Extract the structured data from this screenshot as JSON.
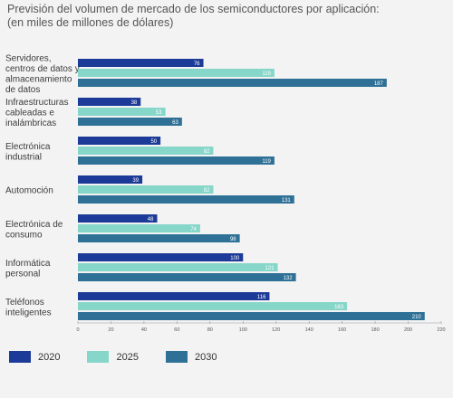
{
  "title_line1": "Previsión del volumen de mercado de los semiconductores por aplicación:",
  "title_line2": "(en miles de millones de dólares)",
  "colors": {
    "2020": "#1c3a97",
    "2025": "#86d6c9",
    "2030": "#2f7196"
  },
  "chart_data": {
    "type": "bar",
    "orientation": "horizontal",
    "title": "Previsión del volumen de mercado de los semiconductores por aplicación:",
    "subtitle": "(en miles de millones de dólares)",
    "categories": [
      [
        "Servidores,",
        "centros de datos y",
        "almacenamiento",
        "de datos"
      ],
      [
        "Infraestructuras",
        "cableadas e",
        "inalámbricas"
      ],
      [
        "Electrónica",
        "industrial"
      ],
      [
        "Automoción"
      ],
      [
        "Electrónica de",
        "consumo"
      ],
      [
        "Informática",
        "personal"
      ],
      [
        "Teléfonos",
        "inteligentes"
      ]
    ],
    "series": [
      {
        "name": "2020",
        "values": [
          76,
          38,
          50,
          39,
          48,
          100,
          116
        ]
      },
      {
        "name": "2025",
        "values": [
          119,
          53,
          82,
          82,
          74,
          121,
          163
        ]
      },
      {
        "name": "2030",
        "values": [
          187,
          63,
          119,
          131,
          98,
          132,
          210
        ]
      }
    ],
    "xlim": [
      0,
      220
    ],
    "xticks": [
      0,
      20,
      40,
      60,
      80,
      100,
      120,
      140,
      160,
      180,
      200,
      220
    ],
    "legend_position": "bottom-left",
    "grid": false
  },
  "legend": [
    {
      "label": "2020"
    },
    {
      "label": "2025"
    },
    {
      "label": "2030"
    }
  ]
}
